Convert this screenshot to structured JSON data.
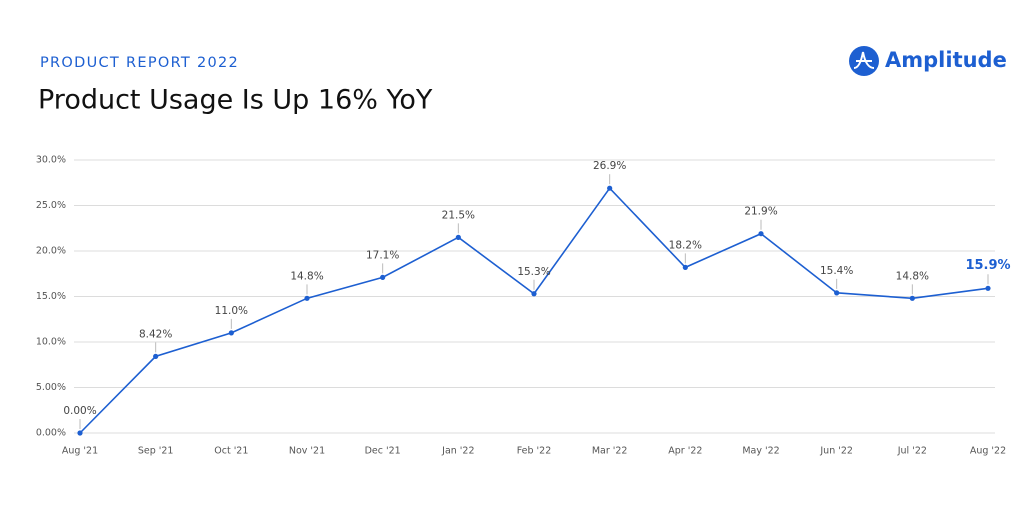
{
  "brand": "Amplitude",
  "chart_data": {
    "type": "line",
    "subtitle": "PRODUCT REPORT 2022",
    "title": "Product Usage Is Up 16% YoY",
    "categories": [
      "Aug '21",
      "Sep '21",
      "Oct '21",
      "Nov '21",
      "Dec '21",
      "Jan '22",
      "Feb '22",
      "Mar '22",
      "Apr '22",
      "May '22",
      "Jun '22",
      "Jul '22",
      "Aug '22"
    ],
    "values": [
      0,
      8.42,
      11.0,
      14.8,
      17.1,
      21.5,
      15.3,
      26.9,
      18.2,
      21.9,
      15.4,
      14.8,
      15.9
    ],
    "value_labels": [
      "0.00%",
      "8.42%",
      "11.0%",
      "14.8%",
      "17.1%",
      "21.5%",
      "15.3%",
      "26.9%",
      "18.2%",
      "21.9%",
      "15.4%",
      "14.8%",
      "15.9%"
    ],
    "color": "#1d5fd1",
    "ylim": [
      0,
      30
    ],
    "yticks": [
      {
        "value": 0,
        "label": "0.00%"
      },
      {
        "value": 5,
        "label": "5.00%"
      },
      {
        "value": 10,
        "label": "10.0%"
      },
      {
        "value": 15,
        "label": "15.0%"
      },
      {
        "value": 20,
        "label": "20.0%"
      },
      {
        "value": 25,
        "label": "25.0%"
      },
      {
        "value": 30,
        "label": "30.0%"
      }
    ],
    "grid": true
  }
}
